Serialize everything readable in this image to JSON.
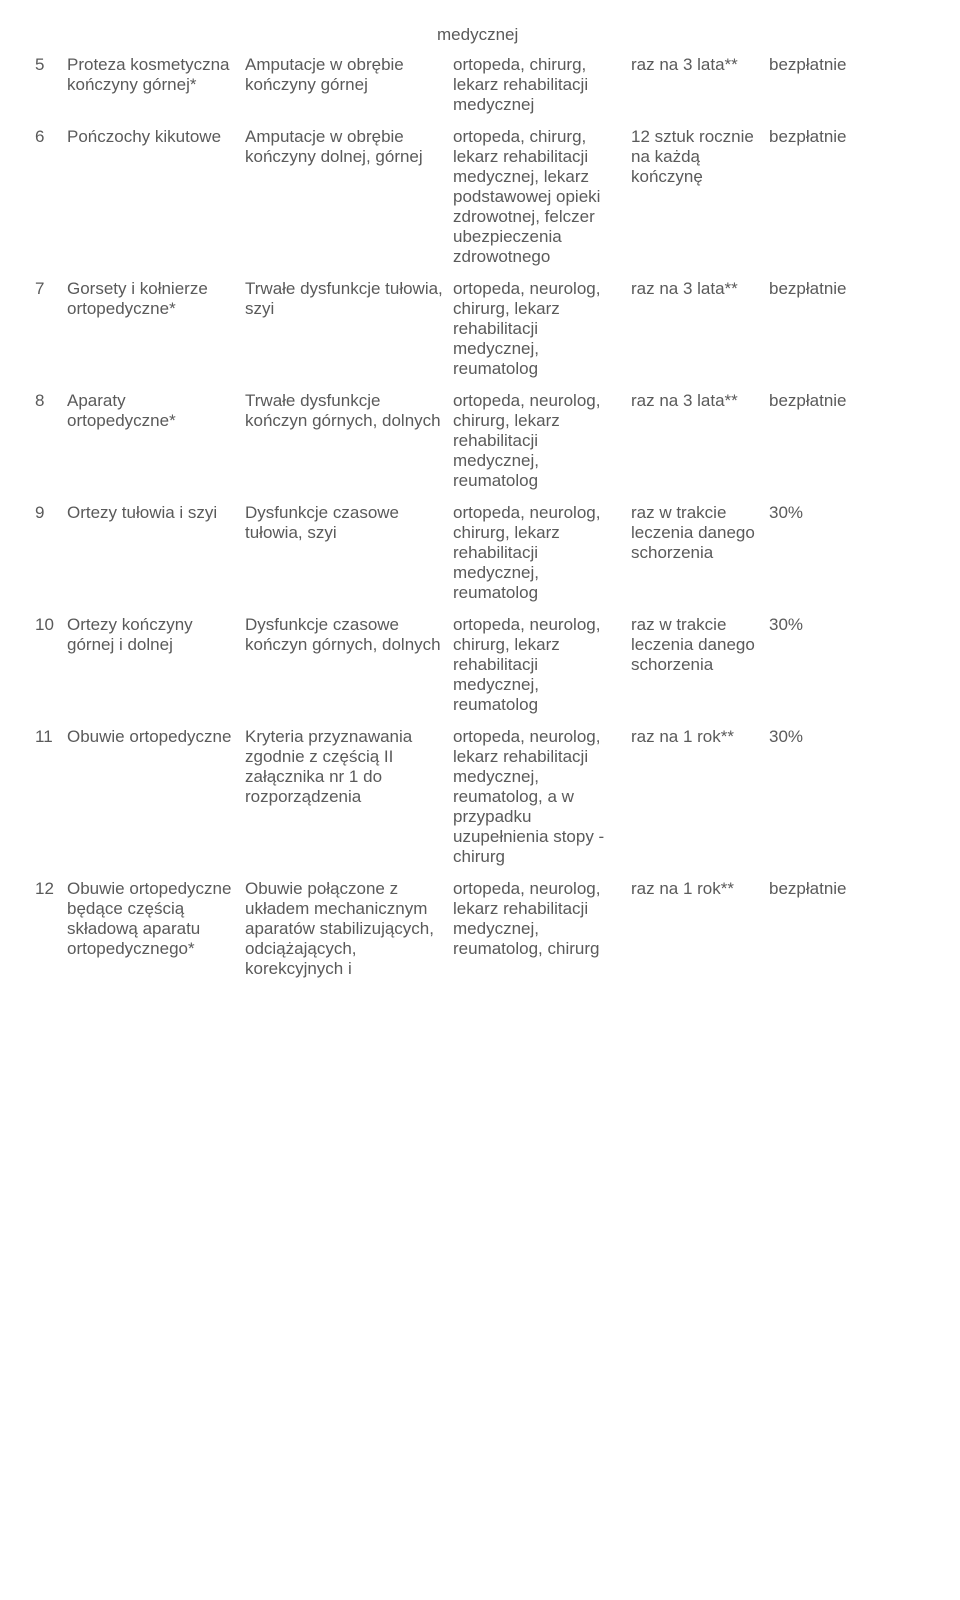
{
  "top_fragment": "medycznej",
  "rows": [
    {
      "num": "5",
      "a": "Proteza kosmetyczna kończyny górnej*",
      "b": "Amputacje w obrębie kończyny górnej",
      "c": "ortopeda, chirurg, lekarz rehabilitacji medycznej",
      "d": "raz na 3 lata**",
      "e": "bezpłatnie"
    },
    {
      "num": "6",
      "a": "Pończochy kikutowe",
      "b": "Amputacje w obrębie kończyny dolnej, górnej",
      "c": "ortopeda, chirurg, lekarz rehabilitacji medycznej, lekarz podstawowej opieki zdrowotnej, felczer ubezpieczenia zdrowotnego",
      "d": "12 sztuk rocznie na każdą kończynę",
      "e": "bezpłatnie"
    },
    {
      "num": "7",
      "a": "Gorsety i kołnierze ortopedyczne*",
      "b": "Trwałe dysfunkcje tułowia, szyi",
      "c": "ortopeda, neurolog, chirurg, lekarz rehabilitacji medycznej, reumatolog",
      "d": "raz na 3 lata**",
      "e": "bezpłatnie"
    },
    {
      "num": "8",
      "a": "Aparaty ortopedyczne*",
      "b": "Trwałe dysfunkcje kończyn górnych, dolnych",
      "c": "ortopeda, neurolog, chirurg, lekarz rehabilitacji medycznej, reumatolog",
      "d": "raz na 3 lata**",
      "e": "bezpłatnie"
    },
    {
      "num": "9",
      "a": "Ortezy tułowia i szyi",
      "b": "Dysfunkcje czasowe tułowia, szyi",
      "c": "ortopeda, neurolog, chirurg, lekarz rehabilitacji medycznej, reumatolog",
      "d": "raz w trakcie leczenia danego schorzenia",
      "e": "30%"
    },
    {
      "num": "10",
      "a": "Ortezy kończyny górnej i dolnej",
      "b": "Dysfunkcje czasowe kończyn górnych, dolnych",
      "c": "ortopeda, neurolog, chirurg, lekarz rehabilitacji medycznej, reumatolog",
      "d": "raz w trakcie leczenia danego schorzenia",
      "e": "30%"
    },
    {
      "num": "11",
      "a": "Obuwie ortopedyczne",
      "b": "Kryteria przyznawania zgodnie z częścią II załącznika nr 1 do rozporządzenia",
      "c": "ortopeda, neurolog, lekarz rehabilitacji medycznej, reumatolog, a w przypadku uzupełnienia stopy - chirurg",
      "d": "raz na 1 rok**",
      "e": "30%"
    },
    {
      "num": "12",
      "a": "Obuwie ortopedyczne będące częścią składową aparatu ortopedycznego*",
      "b": "Obuwie połączone z układem mechanicznym aparatów stabilizujących, odciążających, korekcyjnych i",
      "c": "ortopeda, neurolog, lekarz rehabilitacji medycznej, reumatolog, chirurg",
      "d": "raz na 1 rok**",
      "e": "bezpłatnie"
    }
  ]
}
